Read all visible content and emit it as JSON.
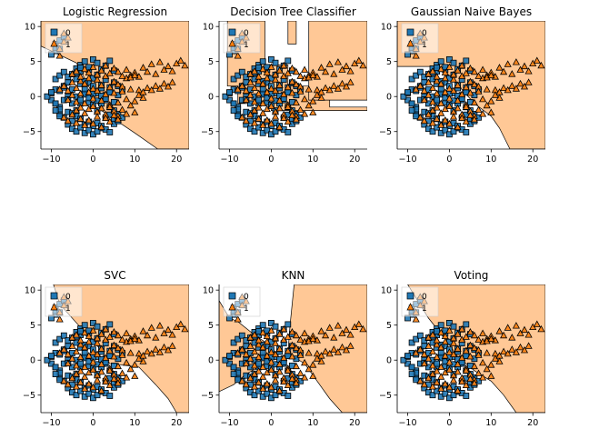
{
  "chart_data": [
    {
      "type": "scatter",
      "title": "Logistic Regression",
      "boundary": "logreg",
      "xlim": [
        -12.5,
        23
      ],
      "ylim": [
        -7.5,
        10.8
      ],
      "xticks": [
        -10,
        0,
        10,
        20
      ],
      "yticks": [
        -5,
        0,
        5,
        10
      ]
    },
    {
      "type": "scatter",
      "title": "Decision Tree Classifier",
      "boundary": "tree",
      "xlim": [
        -12.5,
        23
      ],
      "ylim": [
        -7.5,
        10.8
      ],
      "xticks": [
        -10,
        0,
        10,
        20
      ],
      "yticks": [
        -5,
        0,
        5,
        10
      ]
    },
    {
      "type": "scatter",
      "title": "Gaussian Naive Bayes",
      "boundary": "nb",
      "xlim": [
        -12.5,
        23
      ],
      "ylim": [
        -7.5,
        10.8
      ],
      "xticks": [
        -10,
        0,
        10,
        20
      ],
      "yticks": [
        -5,
        0,
        5,
        10
      ]
    },
    {
      "type": "scatter",
      "title": "SVC",
      "boundary": "svc",
      "xlim": [
        -12.5,
        23
      ],
      "ylim": [
        -7.5,
        10.8
      ],
      "xticks": [
        -10,
        0,
        10,
        20
      ],
      "yticks": [
        -5,
        0,
        5,
        10
      ]
    },
    {
      "type": "scatter",
      "title": "KNN",
      "boundary": "knn",
      "xlim": [
        -12.5,
        23
      ],
      "ylim": [
        -7.5,
        10.8
      ],
      "xticks": [
        -10,
        0,
        10,
        20
      ],
      "yticks": [
        -5,
        0,
        5,
        10
      ]
    },
    {
      "type": "scatter",
      "title": "Voting",
      "boundary": "voting",
      "xlim": [
        -12.5,
        23
      ],
      "ylim": [
        -7.5,
        10.8
      ],
      "xticks": [
        -10,
        0,
        10,
        20
      ],
      "yticks": [
        -5,
        0,
        5,
        10
      ]
    }
  ],
  "legend": {
    "entries": [
      {
        "label": "0",
        "marker": "square"
      },
      {
        "label": "1",
        "marker": "triangle"
      }
    ],
    "placement": "upper-left"
  },
  "colors": {
    "class0": "#1f77b4",
    "class1": "#ff7f0e",
    "region1": "#ffc896",
    "region0": "#ffffff",
    "edge": "#000000"
  },
  "series": [
    {
      "name": "0",
      "marker": "square",
      "x": [
        -9,
        -8,
        -7,
        -6,
        -5,
        -4,
        -3,
        -2,
        -1,
        0,
        1,
        2,
        3,
        4,
        5,
        -10,
        -9,
        -8,
        -7,
        -6,
        -5,
        -4,
        -3,
        -2,
        -1,
        0,
        1,
        2,
        3,
        4,
        -8,
        -7,
        -6,
        -5,
        -4,
        -3,
        -2,
        -1,
        0,
        1,
        2,
        3,
        4,
        5,
        6,
        -9,
        -8,
        -7,
        -6,
        -5,
        -4,
        -3,
        -2,
        -1,
        0,
        1,
        2,
        3,
        4,
        5,
        6,
        7,
        -6,
        -5,
        -4,
        -3,
        -2,
        -1,
        0,
        1,
        2,
        3,
        4,
        5,
        6,
        7,
        -4,
        -3,
        -2,
        -1,
        0,
        1,
        2,
        3,
        4,
        5,
        6,
        -3,
        -2,
        -1,
        0,
        1,
        2,
        3,
        4,
        5,
        -10,
        -9,
        -8,
        -11,
        -10,
        -9,
        -6,
        -7,
        -8,
        -5,
        -4,
        -3,
        -9,
        -8,
        -7,
        -9,
        -10,
        -9,
        -8
      ],
      "y": [
        -1,
        -1.5,
        -0.5,
        0,
        -1,
        -2,
        -1,
        0.5,
        -0.8,
        -1.2,
        -2,
        -1,
        -0.5,
        -1.5,
        -2,
        0.5,
        1,
        0.8,
        1.5,
        2,
        1,
        2.5,
        1.8,
        1,
        2,
        1.5,
        0.5,
        1.2,
        0.2,
        0.6,
        -2.5,
        -3,
        -2.2,
        -3.5,
        -2.8,
        -3.2,
        -4,
        -3.6,
        -4.2,
        -3.8,
        -4.5,
        -3,
        -2.6,
        -3.3,
        -2.5,
        2.5,
        3,
        3.5,
        2.8,
        3.2,
        4,
        3.6,
        2.2,
        3.8,
        2.6,
        3.1,
        1.6,
        2.4,
        1.3,
        2,
        1.5,
        1,
        -4,
        -4.6,
        -5,
        -4.4,
        -5.2,
        -4.8,
        -5.4,
        -5,
        -4.2,
        -4.7,
        -5.1,
        -3.9,
        -3.5,
        -3,
        0,
        -0.5,
        0.3,
        -0.2,
        0.4,
        -0.6,
        0.1,
        -0.3,
        0.6,
        -0.8,
        0.2,
        4.5,
        5,
        4.2,
        5.3,
        4.8,
        3.9,
        4.4,
        5.1,
        3.7,
        -0.5,
        -1,
        -1.8,
        0,
        0.6,
        -2,
        -0.4,
        1.3,
        -2.8,
        -2.4,
        3.4,
        4.1,
        7.5,
        8,
        8.5,
        6.5,
        6,
        7,
        6.8
      ]
    },
    {
      "name": "1",
      "marker": "triangle",
      "x": [
        -8,
        -7,
        -6,
        -5,
        -4,
        -3,
        -2,
        -1,
        0,
        1,
        2,
        3,
        4,
        5,
        6,
        7,
        8,
        9,
        10,
        11,
        12,
        13,
        14,
        15,
        16,
        17,
        18,
        19,
        20,
        21,
        22,
        -6,
        -5,
        -4,
        -3,
        -2,
        -1,
        0,
        1,
        2,
        3,
        4,
        5,
        6,
        7,
        8,
        9,
        10,
        11,
        12,
        -4,
        -3,
        -2,
        -1,
        0,
        1,
        2,
        3,
        4,
        5,
        6,
        7,
        8,
        9,
        10,
        11,
        12,
        13,
        14,
        15,
        16,
        17,
        18,
        19,
        -5,
        -4,
        -3,
        -2,
        -1,
        0,
        1,
        2,
        3,
        4,
        5,
        6,
        7,
        8,
        9,
        10,
        -7,
        -6,
        -5,
        -4,
        -3,
        -2,
        -1,
        0,
        1,
        2,
        3,
        4,
        5,
        6,
        -7,
        -8,
        -6,
        -7,
        -8
      ],
      "y": [
        1,
        1.5,
        0.8,
        2,
        1.2,
        2.2,
        1.8,
        2.6,
        1.1,
        2.4,
        1.6,
        2.9,
        1.3,
        2.1,
        1.7,
        1.4,
        2.6,
        3,
        3.4,
        2.8,
        4.1,
        3.5,
        4.6,
        3.2,
        4.9,
        3.8,
        4.3,
        3.6,
        4.7,
        5.1,
        4.4,
        -0.5,
        0.2,
        -0.8,
        0.4,
        -1,
        0.6,
        -0.3,
        0.8,
        -0.6,
        0.3,
        -1.2,
        0.5,
        -0.9,
        0.7,
        -0.4,
        1,
        -0.7,
        0.9,
        -0.2,
        -2,
        -1.6,
        -2.4,
        -1.8,
        -1.4,
        -2.2,
        -1.7,
        -2.6,
        -1.5,
        -2.1,
        -2.8,
        -1.9,
        -2.5,
        -1.3,
        -2.3,
        0.2,
        0.6,
        1.2,
        0.9,
        1.5,
        1.1,
        1.8,
        1.4,
        2,
        3.2,
        3.6,
        2.8,
        3.9,
        3.4,
        4.2,
        3.1,
        3.7,
        4.4,
        3.3,
        4,
        3.5,
        2.9,
        3.8,
        2.7,
        3,
        -3,
        -3.5,
        -2.6,
        -3.8,
        -3.2,
        -4.1,
        -3.4,
        -3.9,
        -2.9,
        -4.4,
        -3.1,
        -3.6,
        -2.7,
        -3.3,
        7.8,
        6.8,
        8.4,
        9,
        5.8
      ]
    }
  ]
}
